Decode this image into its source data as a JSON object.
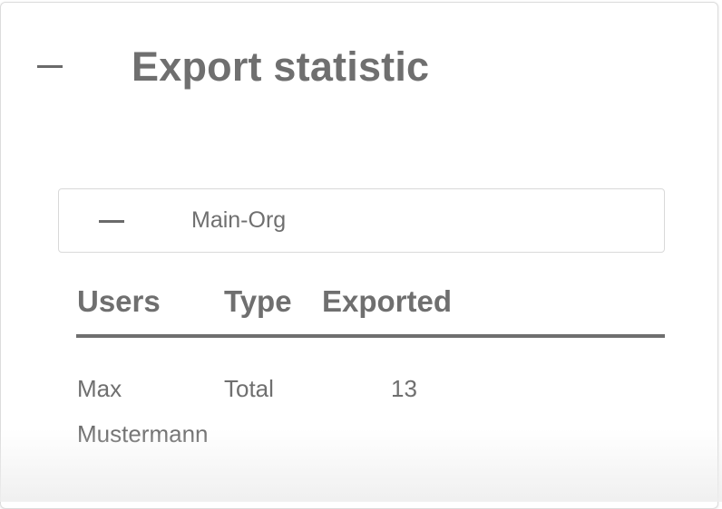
{
  "panel": {
    "title": "Export statistic",
    "collapse_icon": "minus-icon"
  },
  "org": {
    "name": "Main-Org",
    "collapse_icon": "minus-icon"
  },
  "table": {
    "headers": [
      "Users",
      "Type",
      "Exported"
    ],
    "rows": [
      {
        "user": "Max Mustermann",
        "type": "Total",
        "exported": "13"
      }
    ]
  }
}
